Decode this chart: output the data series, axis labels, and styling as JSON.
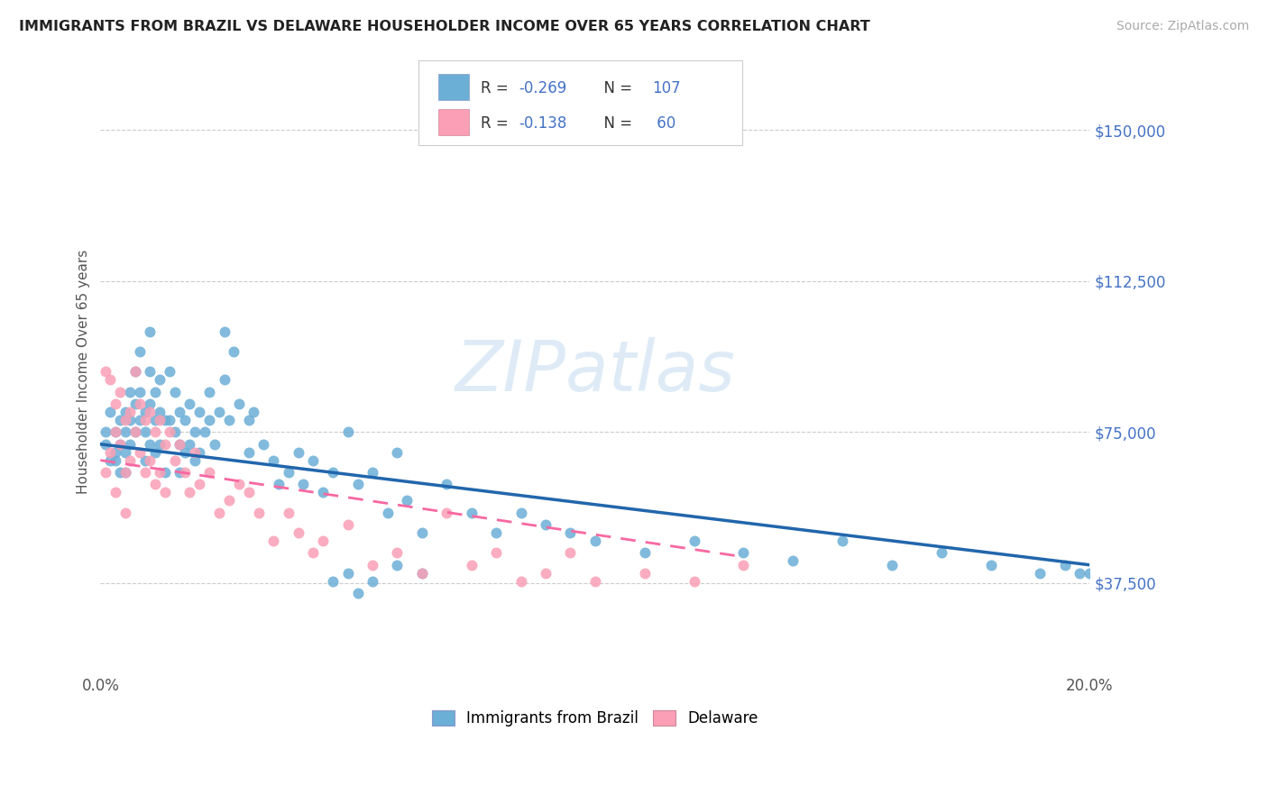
{
  "title": "IMMIGRANTS FROM BRAZIL VS DELAWARE HOUSEHOLDER INCOME OVER 65 YEARS CORRELATION CHART",
  "source": "Source: ZipAtlas.com",
  "ylabel": "Householder Income Over 65 years",
  "xlim": [
    0.0,
    0.2
  ],
  "ylim": [
    15000,
    165000
  ],
  "yticks": [
    37500,
    75000,
    112500,
    150000
  ],
  "ytick_labels": [
    "$37,500",
    "$75,000",
    "$112,500",
    "$150,000"
  ],
  "xticks": [
    0.0,
    0.05,
    0.1,
    0.15,
    0.2
  ],
  "xtick_labels": [
    "0.0%",
    "",
    "",
    "",
    "20.0%"
  ],
  "color_blue": "#6baed6",
  "color_pink": "#fa9fb5",
  "color_blue_line": "#2166ac",
  "color_pink_line": "#f768a1",
  "watermark": "ZIPatlas",
  "brazil_scatter_x": [
    0.001,
    0.001,
    0.002,
    0.002,
    0.003,
    0.003,
    0.003,
    0.004,
    0.004,
    0.004,
    0.005,
    0.005,
    0.005,
    0.005,
    0.006,
    0.006,
    0.006,
    0.007,
    0.007,
    0.007,
    0.008,
    0.008,
    0.008,
    0.009,
    0.009,
    0.009,
    0.01,
    0.01,
    0.01,
    0.01,
    0.011,
    0.011,
    0.011,
    0.012,
    0.012,
    0.012,
    0.013,
    0.013,
    0.014,
    0.014,
    0.015,
    0.015,
    0.016,
    0.016,
    0.016,
    0.017,
    0.017,
    0.018,
    0.018,
    0.019,
    0.019,
    0.02,
    0.02,
    0.021,
    0.022,
    0.022,
    0.023,
    0.024,
    0.025,
    0.025,
    0.026,
    0.027,
    0.028,
    0.03,
    0.03,
    0.031,
    0.033,
    0.035,
    0.036,
    0.038,
    0.04,
    0.041,
    0.043,
    0.045,
    0.047,
    0.05,
    0.052,
    0.055,
    0.058,
    0.06,
    0.062,
    0.065,
    0.07,
    0.075,
    0.08,
    0.085,
    0.09,
    0.095,
    0.1,
    0.11,
    0.12,
    0.13,
    0.14,
    0.15,
    0.16,
    0.17,
    0.18,
    0.19,
    0.195,
    0.198,
    0.055,
    0.06,
    0.065,
    0.047,
    0.05,
    0.052,
    0.2
  ],
  "brazil_scatter_y": [
    75000,
    72000,
    68000,
    80000,
    70000,
    75000,
    68000,
    78000,
    72000,
    65000,
    80000,
    75000,
    70000,
    65000,
    85000,
    78000,
    72000,
    90000,
    82000,
    75000,
    95000,
    85000,
    78000,
    80000,
    75000,
    68000,
    100000,
    90000,
    82000,
    72000,
    85000,
    78000,
    70000,
    88000,
    80000,
    72000,
    78000,
    65000,
    90000,
    78000,
    85000,
    75000,
    80000,
    72000,
    65000,
    78000,
    70000,
    82000,
    72000,
    75000,
    68000,
    80000,
    70000,
    75000,
    85000,
    78000,
    72000,
    80000,
    100000,
    88000,
    78000,
    95000,
    82000,
    78000,
    70000,
    80000,
    72000,
    68000,
    62000,
    65000,
    70000,
    62000,
    68000,
    60000,
    65000,
    75000,
    62000,
    65000,
    55000,
    70000,
    58000,
    50000,
    62000,
    55000,
    50000,
    55000,
    52000,
    50000,
    48000,
    45000,
    48000,
    45000,
    43000,
    48000,
    42000,
    45000,
    42000,
    40000,
    42000,
    40000,
    38000,
    42000,
    40000,
    38000,
    40000,
    35000,
    40000
  ],
  "delaware_scatter_x": [
    0.001,
    0.001,
    0.002,
    0.002,
    0.003,
    0.003,
    0.003,
    0.004,
    0.004,
    0.005,
    0.005,
    0.005,
    0.006,
    0.006,
    0.007,
    0.007,
    0.008,
    0.008,
    0.009,
    0.009,
    0.01,
    0.01,
    0.011,
    0.011,
    0.012,
    0.012,
    0.013,
    0.013,
    0.014,
    0.015,
    0.016,
    0.017,
    0.018,
    0.019,
    0.02,
    0.022,
    0.024,
    0.026,
    0.028,
    0.03,
    0.032,
    0.035,
    0.038,
    0.04,
    0.043,
    0.045,
    0.05,
    0.055,
    0.06,
    0.065,
    0.07,
    0.075,
    0.08,
    0.085,
    0.09,
    0.095,
    0.1,
    0.11,
    0.12,
    0.13
  ],
  "delaware_scatter_y": [
    90000,
    65000,
    88000,
    70000,
    82000,
    75000,
    60000,
    85000,
    72000,
    78000,
    65000,
    55000,
    80000,
    68000,
    90000,
    75000,
    82000,
    70000,
    78000,
    65000,
    80000,
    68000,
    75000,
    62000,
    78000,
    65000,
    72000,
    60000,
    75000,
    68000,
    72000,
    65000,
    60000,
    70000,
    62000,
    65000,
    55000,
    58000,
    62000,
    60000,
    55000,
    48000,
    55000,
    50000,
    45000,
    48000,
    52000,
    42000,
    45000,
    40000,
    55000,
    42000,
    45000,
    38000,
    40000,
    45000,
    38000,
    40000,
    38000,
    42000
  ],
  "brazil_line_x": [
    0.0,
    0.2
  ],
  "brazil_line_y": [
    72000,
    42000
  ],
  "delaware_line_x": [
    0.0,
    0.13
  ],
  "delaware_line_y": [
    68000,
    44000
  ]
}
